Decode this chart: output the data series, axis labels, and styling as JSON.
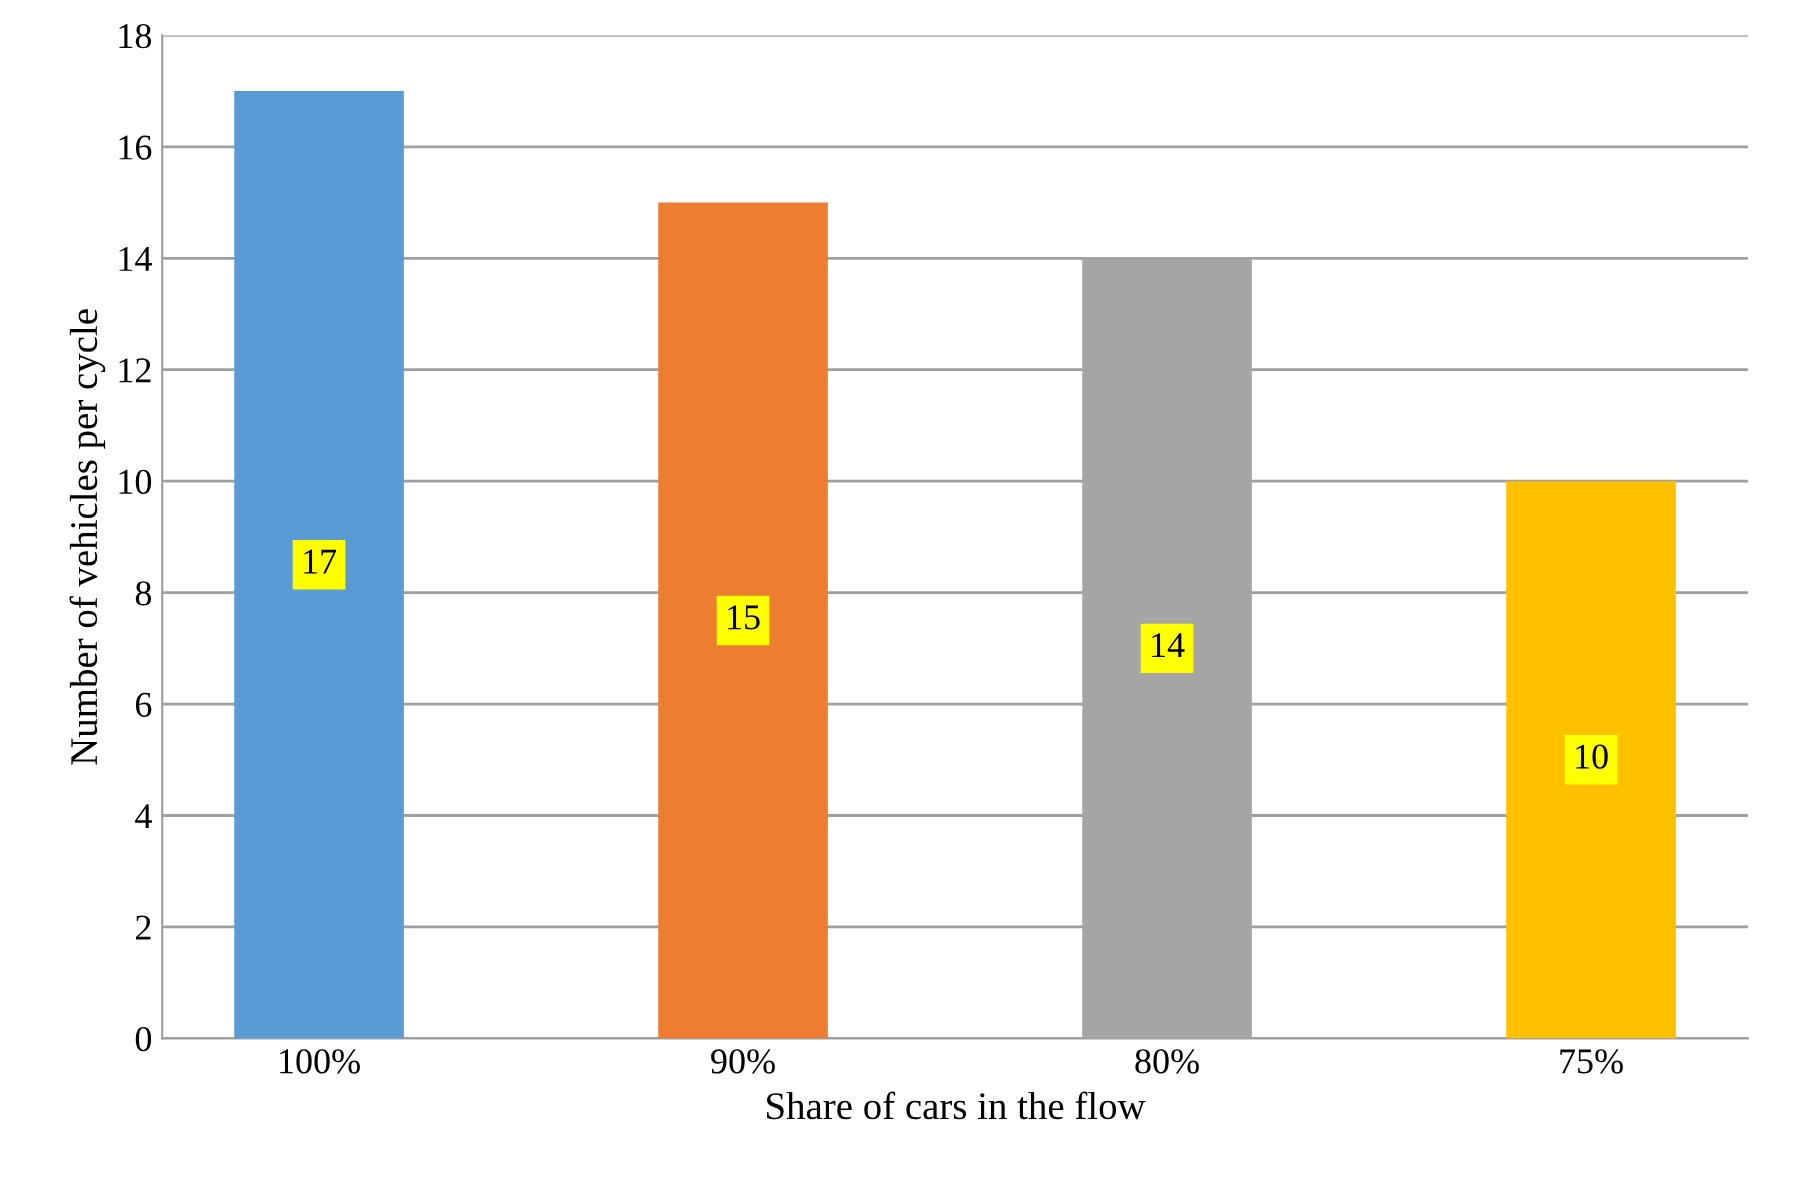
{
  "chart_data": {
    "type": "bar",
    "xlabel": "Share of cars in the flow",
    "ylabel": "Number of vehicles per cycle",
    "categories": [
      "100%",
      "90%",
      "80%",
      "75%"
    ],
    "values": [
      17,
      15,
      14,
      10
    ],
    "colors": [
      "#5b9bd5",
      "#ed7d31",
      "#a5a5a5",
      "#ffc000"
    ],
    "ylim": [
      0,
      18
    ],
    "yticks": [
      0,
      2,
      4,
      6,
      8,
      10,
      12,
      14,
      16,
      18
    ],
    "grid": "y",
    "data_labels": true
  }
}
